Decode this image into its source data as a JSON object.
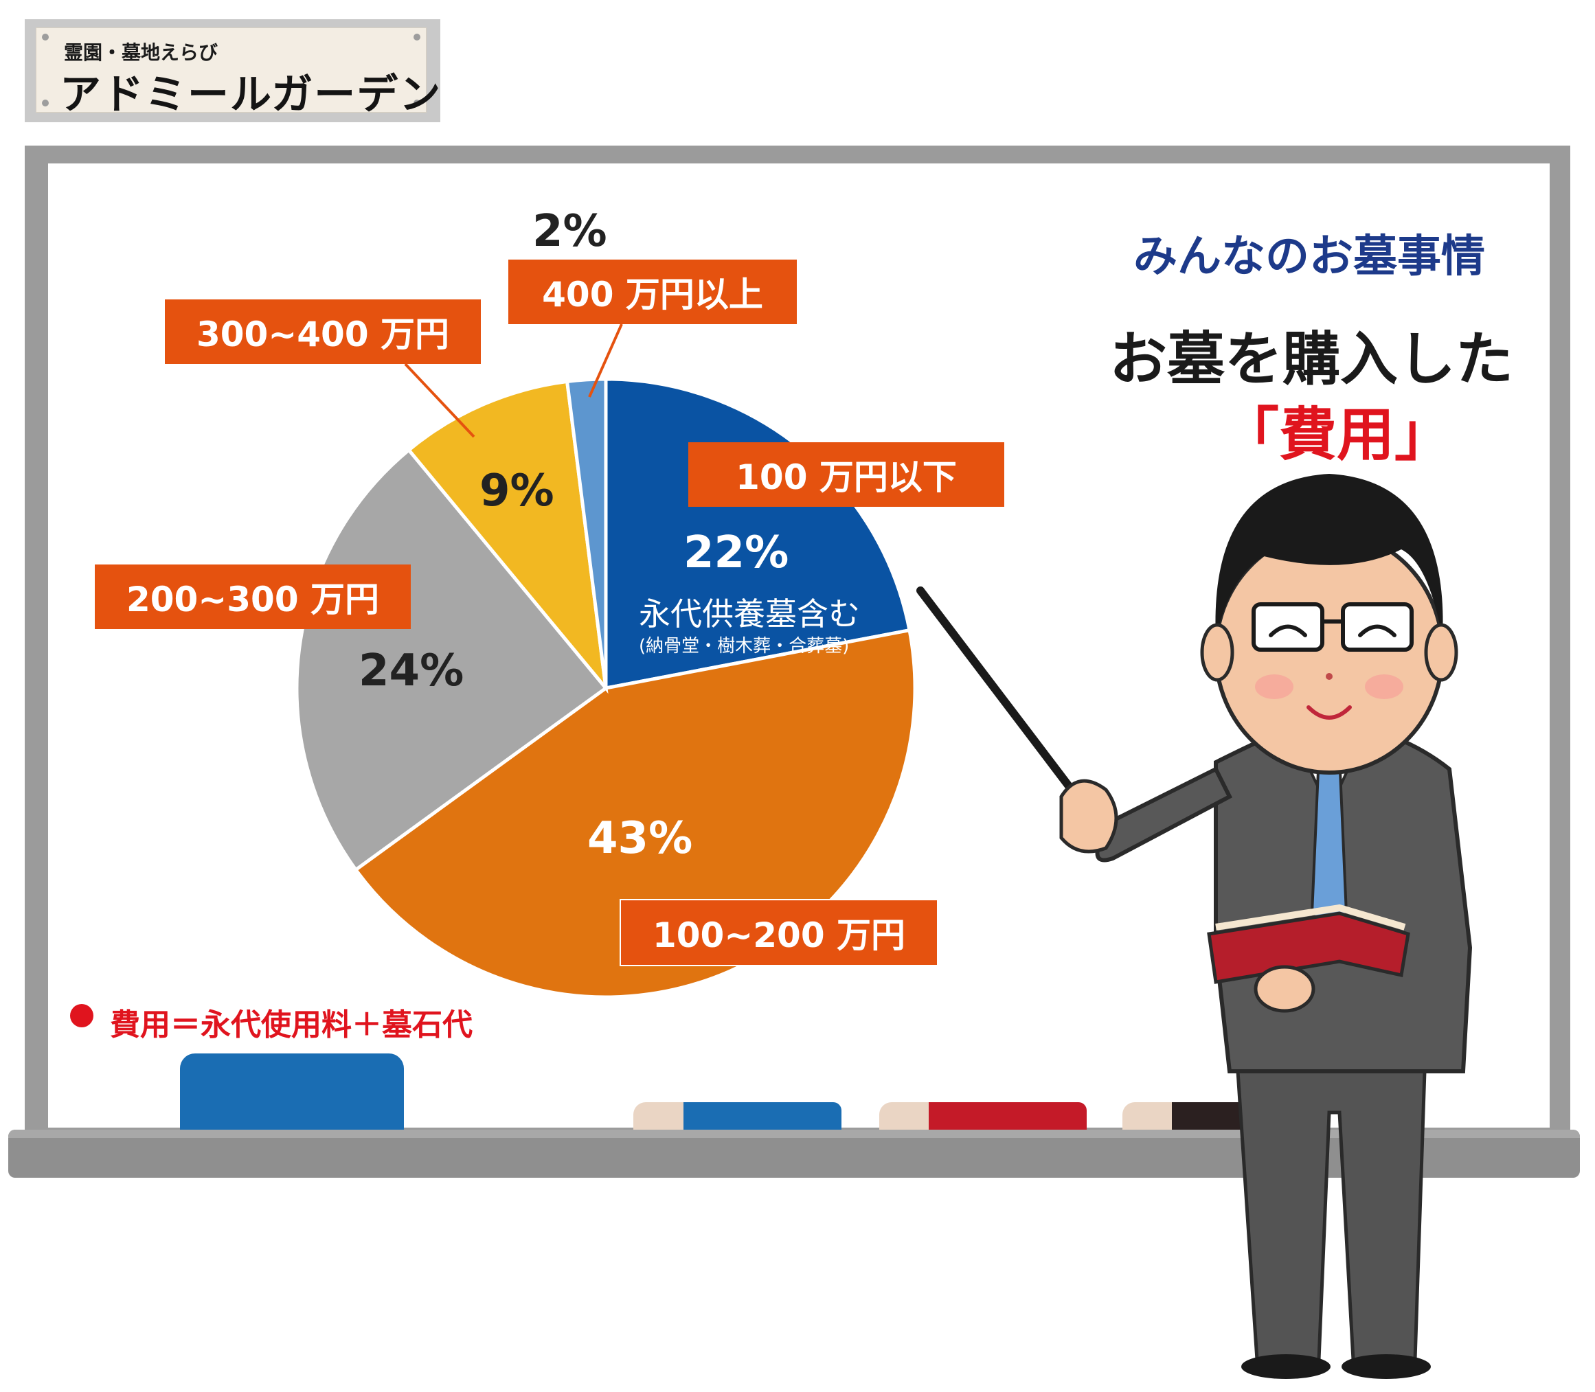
{
  "logo": {
    "subtitle": "霊園・墓地えらび",
    "name": "アドミールガーデン"
  },
  "titles": {
    "line1": "みんなのお墓事情",
    "line2": "お墓を購入した",
    "line3": "「費用」"
  },
  "note": "費用＝永代使用料＋墓石代",
  "colors": {
    "label_bg": "#e5520f",
    "title_blue": "#1d3a8a",
    "accent_red": "#e0141e",
    "board_frame": "#9b9b9b"
  },
  "chart_data": {
    "type": "pie",
    "start_angle": "12 o'clock",
    "direction": "clockwise",
    "slices": [
      {
        "label": "100 万円以下",
        "value": 22,
        "display": "22%",
        "color": "#0a53a3",
        "note": "永代供養墓含む",
        "subnote": "(納骨堂・樹木葬・合葬墓)"
      },
      {
        "label": "100~200 万円",
        "value": 43,
        "display": "43%",
        "color": "#e07410"
      },
      {
        "label": "200~300 万円",
        "value": 24,
        "display": "24%",
        "color": "#a7a7a7"
      },
      {
        "label": "300~400 万円",
        "value": 9,
        "display": "9%",
        "color": "#f2b822"
      },
      {
        "label": "400 万円以上",
        "value": 2,
        "display": "2%",
        "color": "#5d96cf"
      }
    ]
  },
  "illustration": {
    "subject": "presenter-businessman",
    "items": [
      "pointer-stick",
      "open-book",
      "eraser",
      "markers"
    ]
  }
}
